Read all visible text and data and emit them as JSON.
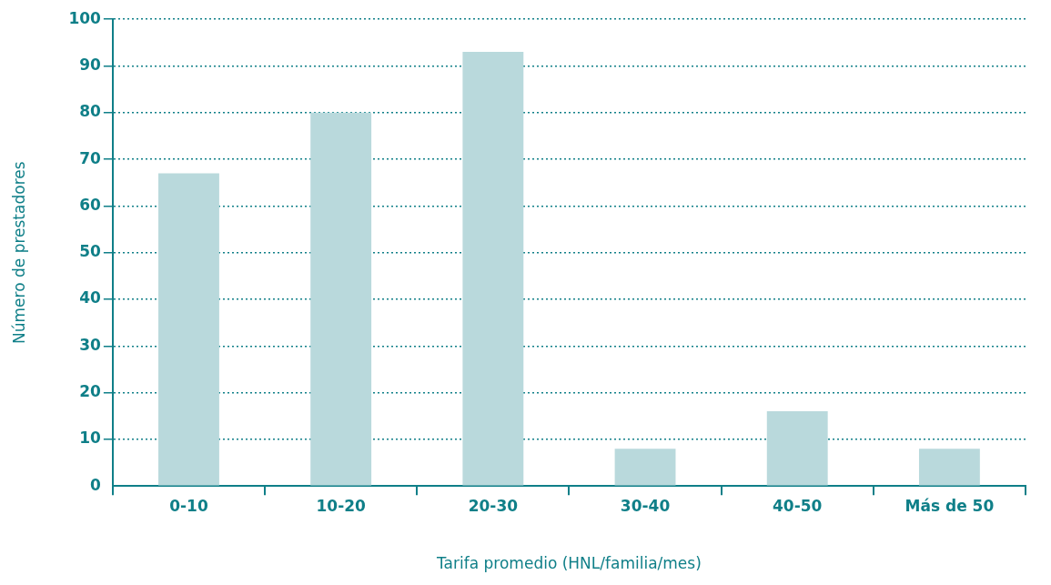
{
  "chart_data": {
    "type": "bar",
    "xlabel": "Tarifa promedio (HNL/familia/mes)",
    "ylabel": "Número de prestadores",
    "categories": [
      "0-10",
      "10-20",
      "20-30",
      "30-40",
      "40-50",
      "Más de 50"
    ],
    "values": [
      67,
      80,
      93,
      8,
      16,
      8
    ],
    "color": "#b9d9dc",
    "ylim": [
      0,
      100
    ],
    "yticks": [
      0,
      10,
      20,
      30,
      40,
      50,
      60,
      70,
      80,
      90,
      100
    ],
    "grid": "y",
    "legend": false
  }
}
